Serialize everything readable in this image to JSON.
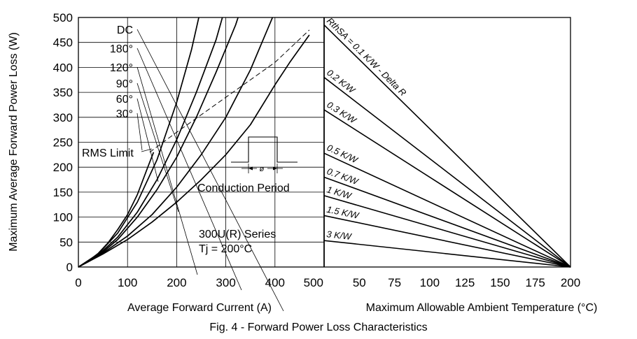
{
  "figure": {
    "caption": "Fig. 4 - Forward Power Loss Characteristics",
    "ylabel": "Maximum Average Forward Power Loss (W)"
  },
  "chart_data": [
    {
      "type": "line",
      "xlabel": "Average Forward Current (A)",
      "xlim": [
        0,
        500
      ],
      "ylim": [
        0,
        500
      ],
      "x_ticks": [
        "0",
        "100",
        "200",
        "300",
        "400",
        "500"
      ],
      "y_ticks": [
        "0",
        "50",
        "100",
        "150",
        "200",
        "250",
        "300",
        "350",
        "400",
        "450",
        "500"
      ],
      "grid": true,
      "series": [
        {
          "name": "30°",
          "points": [
            [
              0,
              0
            ],
            [
              20,
              12
            ],
            [
              40,
              27
            ],
            [
              60,
              48
            ],
            [
              80,
              75
            ],
            [
              100,
              105
            ],
            [
              120,
              145
            ],
            [
              140,
              197
            ],
            [
              153,
              230
            ]
          ]
        },
        {
          "name": "60°",
          "points": [
            [
              0,
              0
            ],
            [
              40,
              26
            ],
            [
              80,
              68
            ],
            [
              120,
              130
            ],
            [
              160,
              215
            ],
            [
              200,
              330
            ],
            [
              230,
              435
            ],
            [
              245,
              500
            ]
          ]
        },
        {
          "name": "90°",
          "points": [
            [
              0,
              0
            ],
            [
              40,
              24
            ],
            [
              80,
              60
            ],
            [
              120,
              110
            ],
            [
              160,
              175
            ],
            [
              200,
              255
            ],
            [
              240,
              350
            ],
            [
              280,
              455
            ],
            [
              293,
              500
            ]
          ]
        },
        {
          "name": "120°",
          "points": [
            [
              0,
              0
            ],
            [
              40,
              22
            ],
            [
              80,
              55
            ],
            [
              120,
              100
            ],
            [
              160,
              155
            ],
            [
              200,
              220
            ],
            [
              240,
              300
            ],
            [
              280,
              390
            ],
            [
              320,
              485
            ],
            [
              325,
              500
            ]
          ]
        },
        {
          "name": "180°",
          "points": [
            [
              0,
              0
            ],
            [
              50,
              28
            ],
            [
              100,
              62
            ],
            [
              150,
              105
            ],
            [
              200,
              160
            ],
            [
              250,
              225
            ],
            [
              300,
              300
            ],
            [
              350,
              395
            ],
            [
              395,
              500
            ]
          ]
        },
        {
          "name": "DC",
          "points": [
            [
              0,
              0
            ],
            [
              50,
              26
            ],
            [
              100,
              55
            ],
            [
              150,
              90
            ],
            [
              200,
              130
            ],
            [
              250,
              175
            ],
            [
              300,
              225
            ],
            [
              350,
              285
            ],
            [
              400,
              365
            ],
            [
              430,
              410
            ],
            [
              470,
              465
            ]
          ]
        }
      ],
      "annotations": {
        "curve_labels": [
          "DC",
          "180°",
          "120°",
          "90°",
          "60°",
          "30°"
        ],
        "rms_limit": "RMS Limit",
        "rms_limit_points": [
          [
            145,
            230
          ],
          [
            200,
            270
          ],
          [
            300,
            340
          ],
          [
            400,
            410
          ],
          [
            470,
            475
          ]
        ],
        "conduction_period": "Conduction Period",
        "phi_symbol": "ø",
        "series_name": "300U(R) Series",
        "tj": "Tj = 200°C"
      }
    },
    {
      "type": "line",
      "xlabel": "Maximum Allowable Ambient Temperature (°C)",
      "xlim": [
        25,
        200
      ],
      "ylim": [
        0,
        500
      ],
      "x_ticks": [
        "50",
        "75",
        "100",
        "125",
        "150",
        "175",
        "200"
      ],
      "grid": false,
      "series": [
        {
          "name": "RthSA = 0.1 K/W - Delta R",
          "points": [
            [
              25,
              485
            ],
            [
              200,
              0
            ]
          ]
        },
        {
          "name": "0.2 K/W",
          "points": [
            [
              25,
              380
            ],
            [
              200,
              0
            ]
          ]
        },
        {
          "name": "0.3 K/W",
          "points": [
            [
              25,
              315
            ],
            [
              200,
              0
            ]
          ]
        },
        {
          "name": "0.5 K/W",
          "points": [
            [
              25,
              228
            ],
            [
              200,
              0
            ]
          ]
        },
        {
          "name": "0.7 K/W",
          "points": [
            [
              25,
              180
            ],
            [
              200,
              0
            ]
          ]
        },
        {
          "name": "1 K/W",
          "points": [
            [
              25,
              143
            ],
            [
              200,
              0
            ]
          ]
        },
        {
          "name": "1.5 K/W",
          "points": [
            [
              25,
              103
            ],
            [
              200,
              0
            ]
          ]
        },
        {
          "name": "3 K/W",
          "points": [
            [
              25,
              53
            ],
            [
              200,
              0
            ]
          ]
        }
      ]
    }
  ]
}
